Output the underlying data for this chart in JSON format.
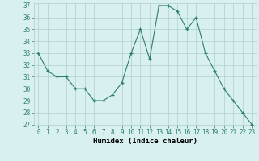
{
  "x": [
    0,
    1,
    2,
    3,
    4,
    5,
    6,
    7,
    8,
    9,
    10,
    11,
    12,
    13,
    14,
    15,
    16,
    17,
    18,
    19,
    20,
    21,
    22,
    23
  ],
  "y": [
    33,
    31.5,
    31,
    31,
    30,
    30,
    29,
    29,
    29.5,
    30.5,
    33,
    35,
    32.5,
    37,
    37,
    36.5,
    35,
    36,
    33,
    31.5,
    30,
    29,
    28,
    27
  ],
  "line_color": "#2e7d72",
  "marker_color": "#2e7d72",
  "bg_color": "#d8f0f0",
  "grid_color": "#afd0cc",
  "xlabel": "Humidex (Indice chaleur)",
  "ylim": [
    27,
    37
  ],
  "xlim": [
    -0.5,
    23.5
  ],
  "yticks": [
    27,
    28,
    29,
    30,
    31,
    32,
    33,
    34,
    35,
    36,
    37
  ],
  "xticks": [
    0,
    1,
    2,
    3,
    4,
    5,
    6,
    7,
    8,
    9,
    10,
    11,
    12,
    13,
    14,
    15,
    16,
    17,
    18,
    19,
    20,
    21,
    22,
    23
  ],
  "tick_fontsize": 5.5,
  "xlabel_fontsize": 6.5
}
